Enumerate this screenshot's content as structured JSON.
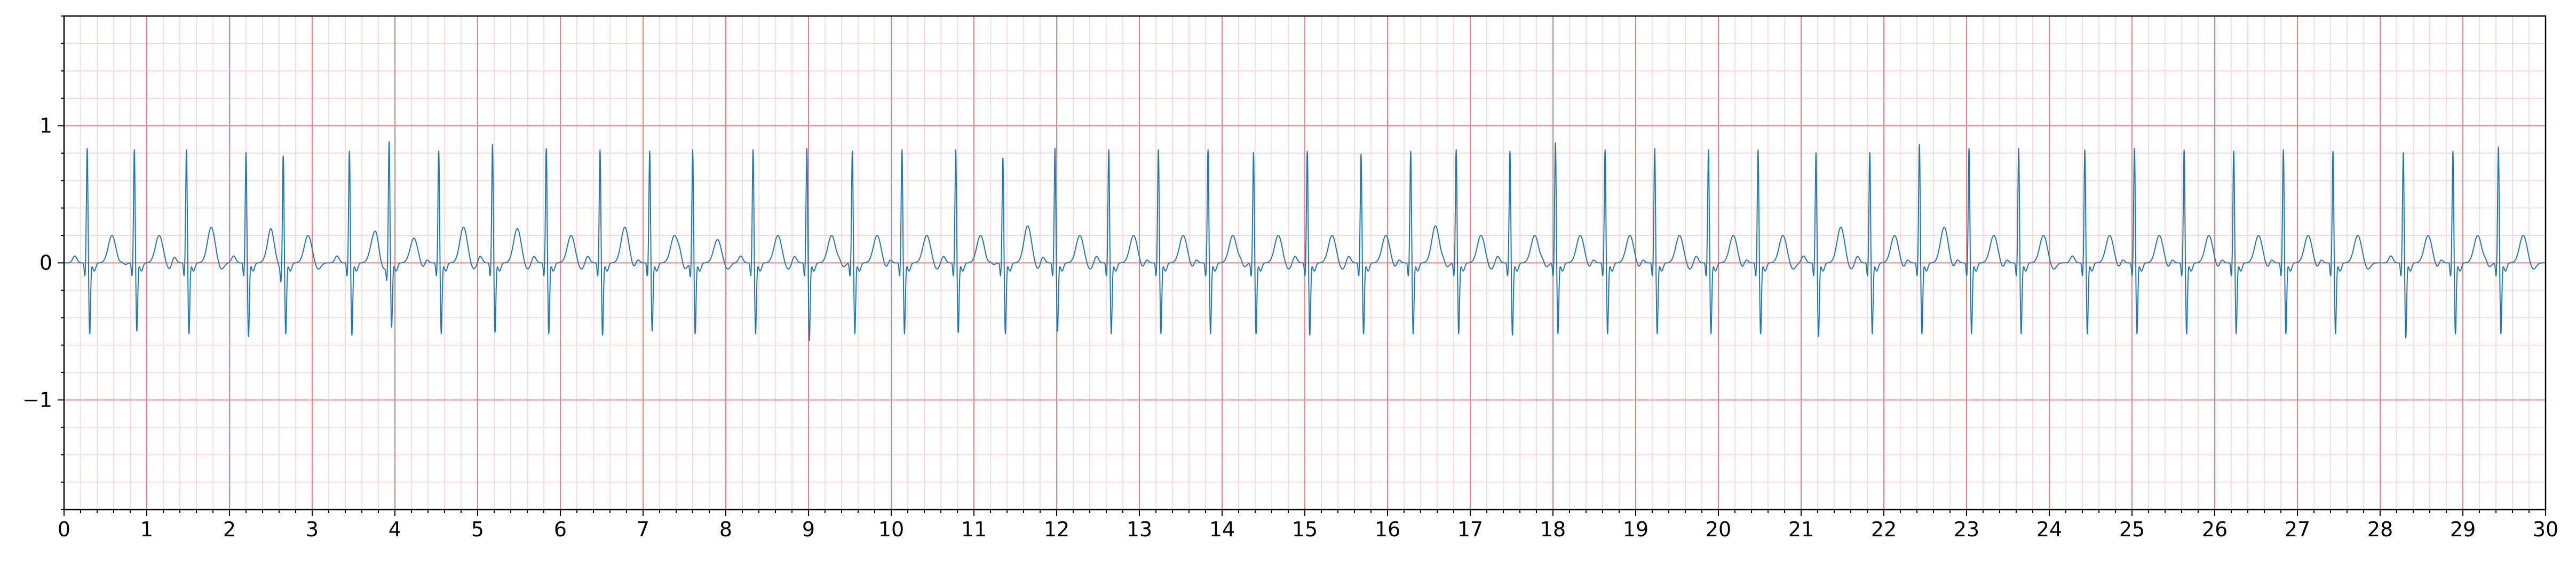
{
  "chart_data": {
    "type": "line",
    "title": "",
    "xlabel": "",
    "ylabel": "",
    "xlim": [
      0,
      30
    ],
    "ylim": [
      -1.8,
      1.8
    ],
    "grid": true,
    "grid_major_x_step": 1,
    "grid_minor_x_step": 0.2,
    "grid_major_y_step": 1,
    "grid_minor_y_step": 0.2,
    "x_ticks": [
      "0",
      "1",
      "2",
      "3",
      "4",
      "5",
      "6",
      "7",
      "8",
      "9",
      "10",
      "11",
      "12",
      "13",
      "14",
      "15",
      "16",
      "17",
      "18",
      "19",
      "20",
      "21",
      "22",
      "23",
      "24",
      "25",
      "26",
      "27",
      "28",
      "29",
      "30"
    ],
    "y_ticks": [
      {
        "value": 1,
        "label": "1"
      },
      {
        "value": 0,
        "label": "0"
      },
      {
        "value": -1,
        "label": "−1"
      }
    ],
    "colors": {
      "line": "#1f77b4",
      "grid_major": "#f08080",
      "grid_minor": "#ffd0d0",
      "axes": "#000000"
    },
    "series": [
      {
        "beats_x": [
          0.28,
          0.85,
          1.48,
          2.2,
          2.65,
          3.45,
          3.93,
          4.53,
          5.18,
          5.83,
          6.48,
          7.08,
          7.6,
          8.33,
          8.98,
          9.53,
          10.13,
          10.78,
          11.35,
          11.98,
          12.63,
          13.23,
          13.83,
          14.38,
          15.03,
          15.68,
          16.28,
          16.83,
          17.48,
          18.03,
          18.63,
          19.23,
          19.88,
          20.48,
          21.18,
          21.83,
          22.43,
          23.03,
          23.63,
          24.43,
          25.03,
          25.63,
          26.23,
          26.83,
          27.43,
          28.28,
          28.88,
          29.43
        ],
        "r_peaks": [
          0.74,
          0.73,
          0.73,
          0.71,
          0.72,
          0.72,
          0.8,
          0.72,
          0.77,
          0.74,
          0.73,
          0.72,
          0.73,
          0.73,
          0.74,
          0.72,
          0.73,
          0.73,
          0.67,
          0.74,
          0.73,
          0.73,
          0.73,
          0.71,
          0.72,
          0.7,
          0.72,
          0.73,
          0.72,
          0.78,
          0.73,
          0.74,
          0.73,
          0.73,
          0.71,
          0.71,
          0.77,
          0.74,
          0.74,
          0.73,
          0.74,
          0.73,
          0.72,
          0.73,
          0.72,
          0.71,
          0.72,
          0.75
        ],
        "s_troughs": [
          -0.5,
          -0.48,
          -0.5,
          -0.52,
          -0.49,
          -0.51,
          -0.45,
          -0.5,
          -0.49,
          -0.5,
          -0.51,
          -0.48,
          -0.5,
          -0.5,
          -0.55,
          -0.5,
          -0.5,
          -0.49,
          -0.5,
          -0.48,
          -0.5,
          -0.5,
          -0.5,
          -0.5,
          -0.51,
          -0.5,
          -0.5,
          -0.5,
          -0.51,
          -0.5,
          -0.5,
          -0.5,
          -0.5,
          -0.5,
          -0.52,
          -0.5,
          -0.5,
          -0.5,
          -0.5,
          -0.5,
          -0.5,
          -0.5,
          -0.5,
          -0.5,
          -0.5,
          -0.53,
          -0.5,
          -0.5
        ],
        "t_peaks": [
          0.2,
          0.2,
          0.26,
          0.2,
          0.2,
          0.2,
          0.18,
          0.26,
          0.25,
          0.2,
          0.26,
          0.2,
          0.17,
          0.2,
          0.2,
          0.2,
          0.2,
          0.2,
          0.27,
          0.2,
          0.2,
          0.2,
          0.2,
          0.2,
          0.2,
          0.2,
          0.27,
          0.2,
          0.2,
          0.2,
          0.2,
          0.2,
          0.2,
          0.2,
          0.26,
          0.2,
          0.26,
          0.2,
          0.2,
          0.2,
          0.2,
          0.2,
          0.2,
          0.2,
          0.2,
          0.2,
          0.2,
          0.2
        ]
      }
    ]
  }
}
